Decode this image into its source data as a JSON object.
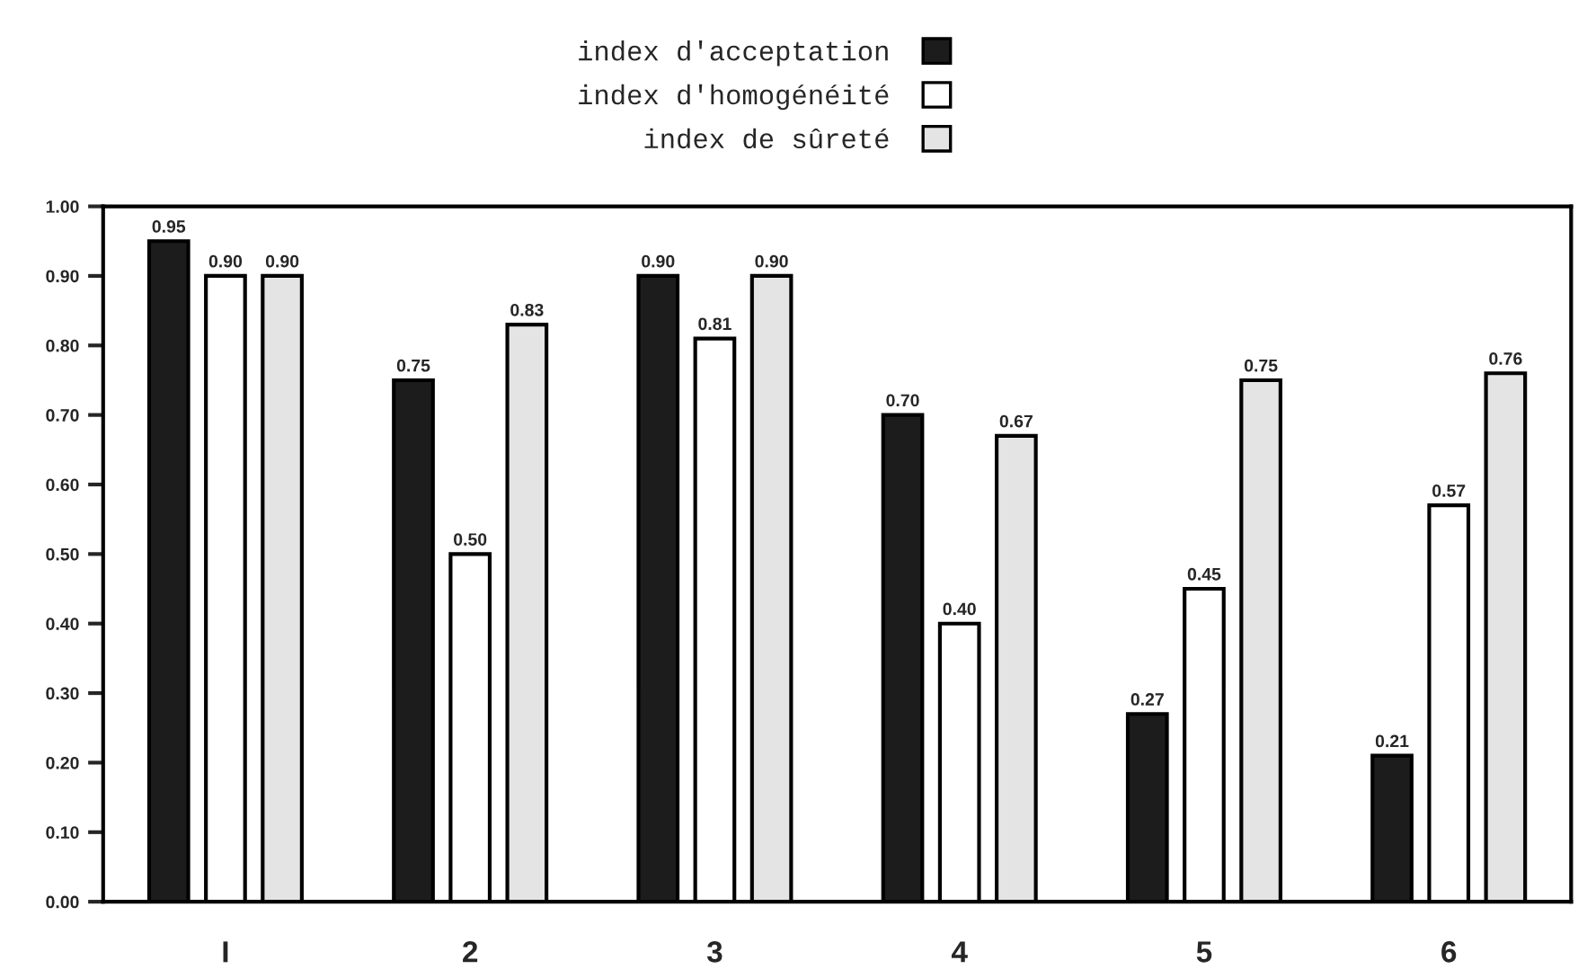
{
  "chart_data": {
    "type": "bar",
    "categories": [
      "I",
      "2",
      "3",
      "4",
      "5",
      "6"
    ],
    "series": [
      {
        "name": "index d'acceptation",
        "color": "#1c1c1c",
        "values": [
          0.95,
          0.75,
          0.9,
          0.7,
          0.27,
          0.21
        ]
      },
      {
        "name": "index d'homogénéité",
        "color": "#ffffff",
        "values": [
          0.9,
          0.5,
          0.81,
          0.4,
          0.45,
          0.57
        ]
      },
      {
        "name": "index de sûreté",
        "color": "#e4e4e4",
        "values": [
          0.9,
          0.83,
          0.9,
          0.67,
          0.75,
          0.76
        ]
      }
    ],
    "ylim": [
      0,
      1
    ],
    "yticks": [
      {
        "value": 0,
        "label": "0.00"
      },
      {
        "value": 0.1,
        "label": "0.10"
      },
      {
        "value": 0.2,
        "label": "0.20"
      },
      {
        "value": 0.3,
        "label": "0.30"
      },
      {
        "value": 0.4,
        "label": "0.40"
      },
      {
        "value": 0.5,
        "label": "0.50"
      },
      {
        "value": 0.6,
        "label": "0.60"
      },
      {
        "value": 0.7,
        "label": "0.70"
      },
      {
        "value": 0.8,
        "label": "0.80"
      },
      {
        "value": 0.9,
        "label": "0.90"
      },
      {
        "value": 1.0,
        "label": "1.00"
      }
    ],
    "value_labels": [
      [
        "0.95",
        "0.75",
        "0.90",
        "0.70",
        "0.27",
        "0.21"
      ],
      [
        "0.90",
        "0.50",
        "0.81",
        "0.40",
        "0.45",
        "0.57"
      ],
      [
        "0.90",
        "0.83",
        "0.90",
        "0.67",
        "0.75",
        "0.76"
      ]
    ],
    "grid": false,
    "legend": "top"
  }
}
